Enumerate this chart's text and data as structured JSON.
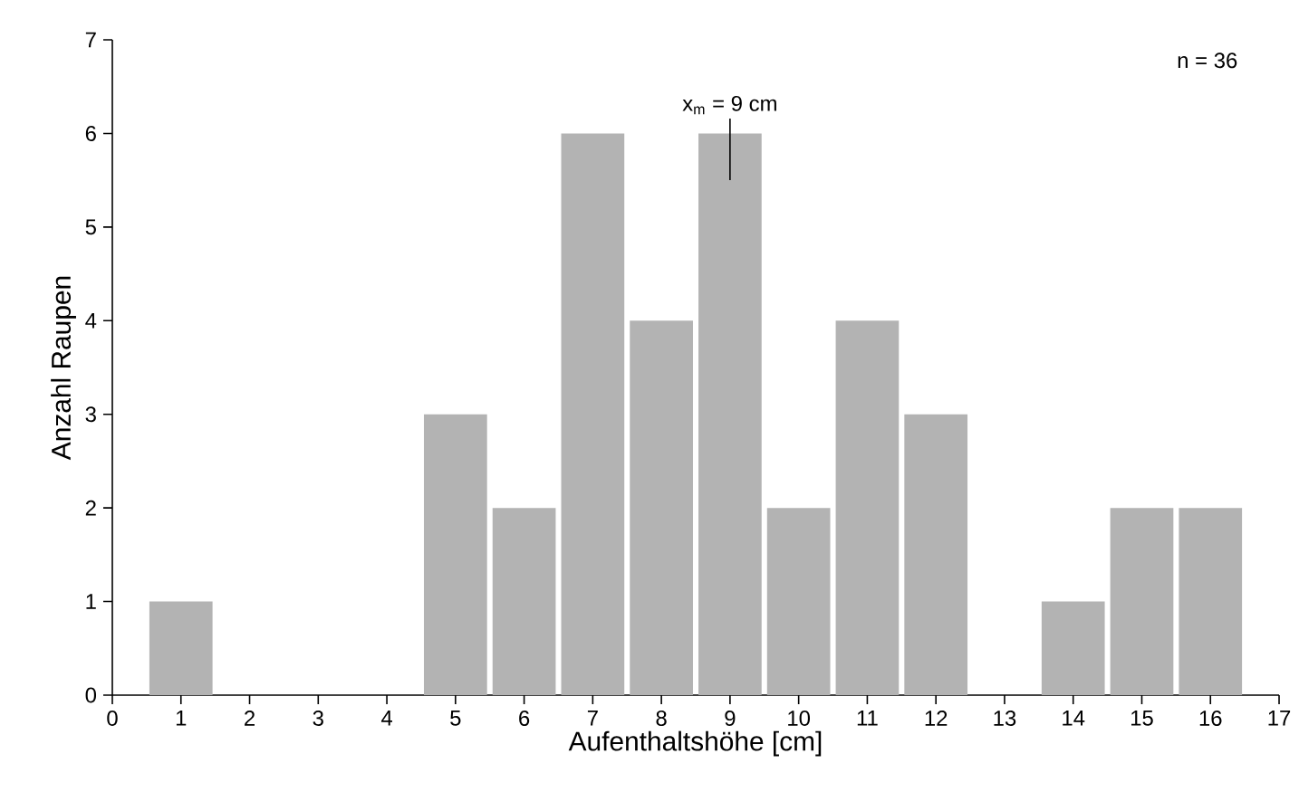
{
  "chart_data": {
    "type": "bar",
    "xlabel": "Aufenthaltshöhe [cm]",
    "ylabel": "Anzahl Raupen",
    "x": [
      1,
      2,
      3,
      4,
      5,
      6,
      7,
      8,
      9,
      10,
      11,
      12,
      13,
      14,
      15,
      16
    ],
    "values": [
      1,
      0,
      0,
      0,
      3,
      2,
      6,
      4,
      6,
      2,
      4,
      3,
      0,
      1,
      2,
      2
    ],
    "color": "#b3b3b3",
    "xlim": [
      0,
      17
    ],
    "xticks": [
      0,
      1,
      2,
      3,
      4,
      5,
      6,
      7,
      8,
      9,
      10,
      11,
      12,
      13,
      14,
      15,
      16,
      17
    ],
    "ylim": [
      0,
      7
    ],
    "yticks": [
      0,
      1,
      2,
      3,
      4,
      5,
      6,
      7
    ],
    "annotations": [
      "x$_{m}$ = 9 cm",
      "n = 36"
    ]
  }
}
